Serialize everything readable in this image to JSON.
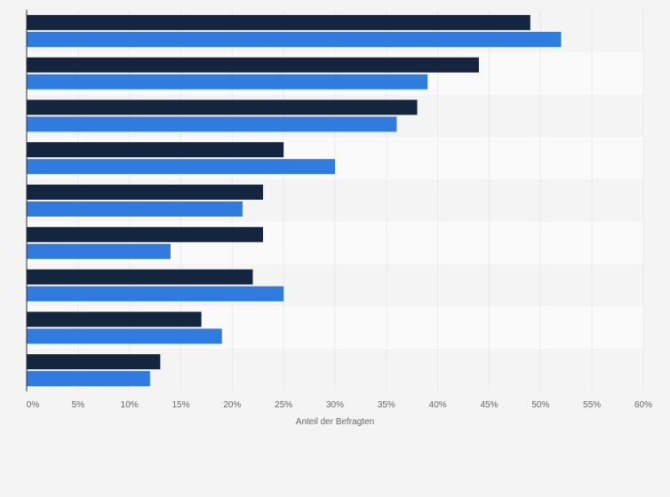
{
  "chart_data": {
    "type": "bar",
    "orientation": "horizontal",
    "categories": [
      "",
      "",
      "",
      "",
      "",
      "",
      "",
      "",
      ""
    ],
    "series": [
      {
        "color": "#14253f",
        "values": [
          49,
          44,
          38,
          25,
          23,
          23,
          22,
          17,
          13
        ]
      },
      {
        "color": "#2f7bdf",
        "values": [
          52,
          39,
          36,
          30,
          21,
          14,
          25,
          19,
          12
        ]
      }
    ],
    "xlim": [
      0,
      60
    ],
    "ticks": [
      {
        "value": 0,
        "label": "0%"
      },
      {
        "value": 5,
        "label": "5%"
      },
      {
        "value": 10,
        "label": "10%"
      },
      {
        "value": 15,
        "label": "15%"
      },
      {
        "value": 20,
        "label": "20%"
      },
      {
        "value": 25,
        "label": "25%"
      },
      {
        "value": 30,
        "label": "30%"
      },
      {
        "value": 35,
        "label": "35%"
      },
      {
        "value": 40,
        "label": "40%"
      },
      {
        "value": 45,
        "label": "45%"
      },
      {
        "value": 50,
        "label": "50%"
      },
      {
        "value": 55,
        "label": "55%"
      },
      {
        "value": 60,
        "label": "60%"
      }
    ],
    "xlabel": "Anteil der Befragten",
    "ylabel": "",
    "grid": true,
    "legend": "none"
  }
}
